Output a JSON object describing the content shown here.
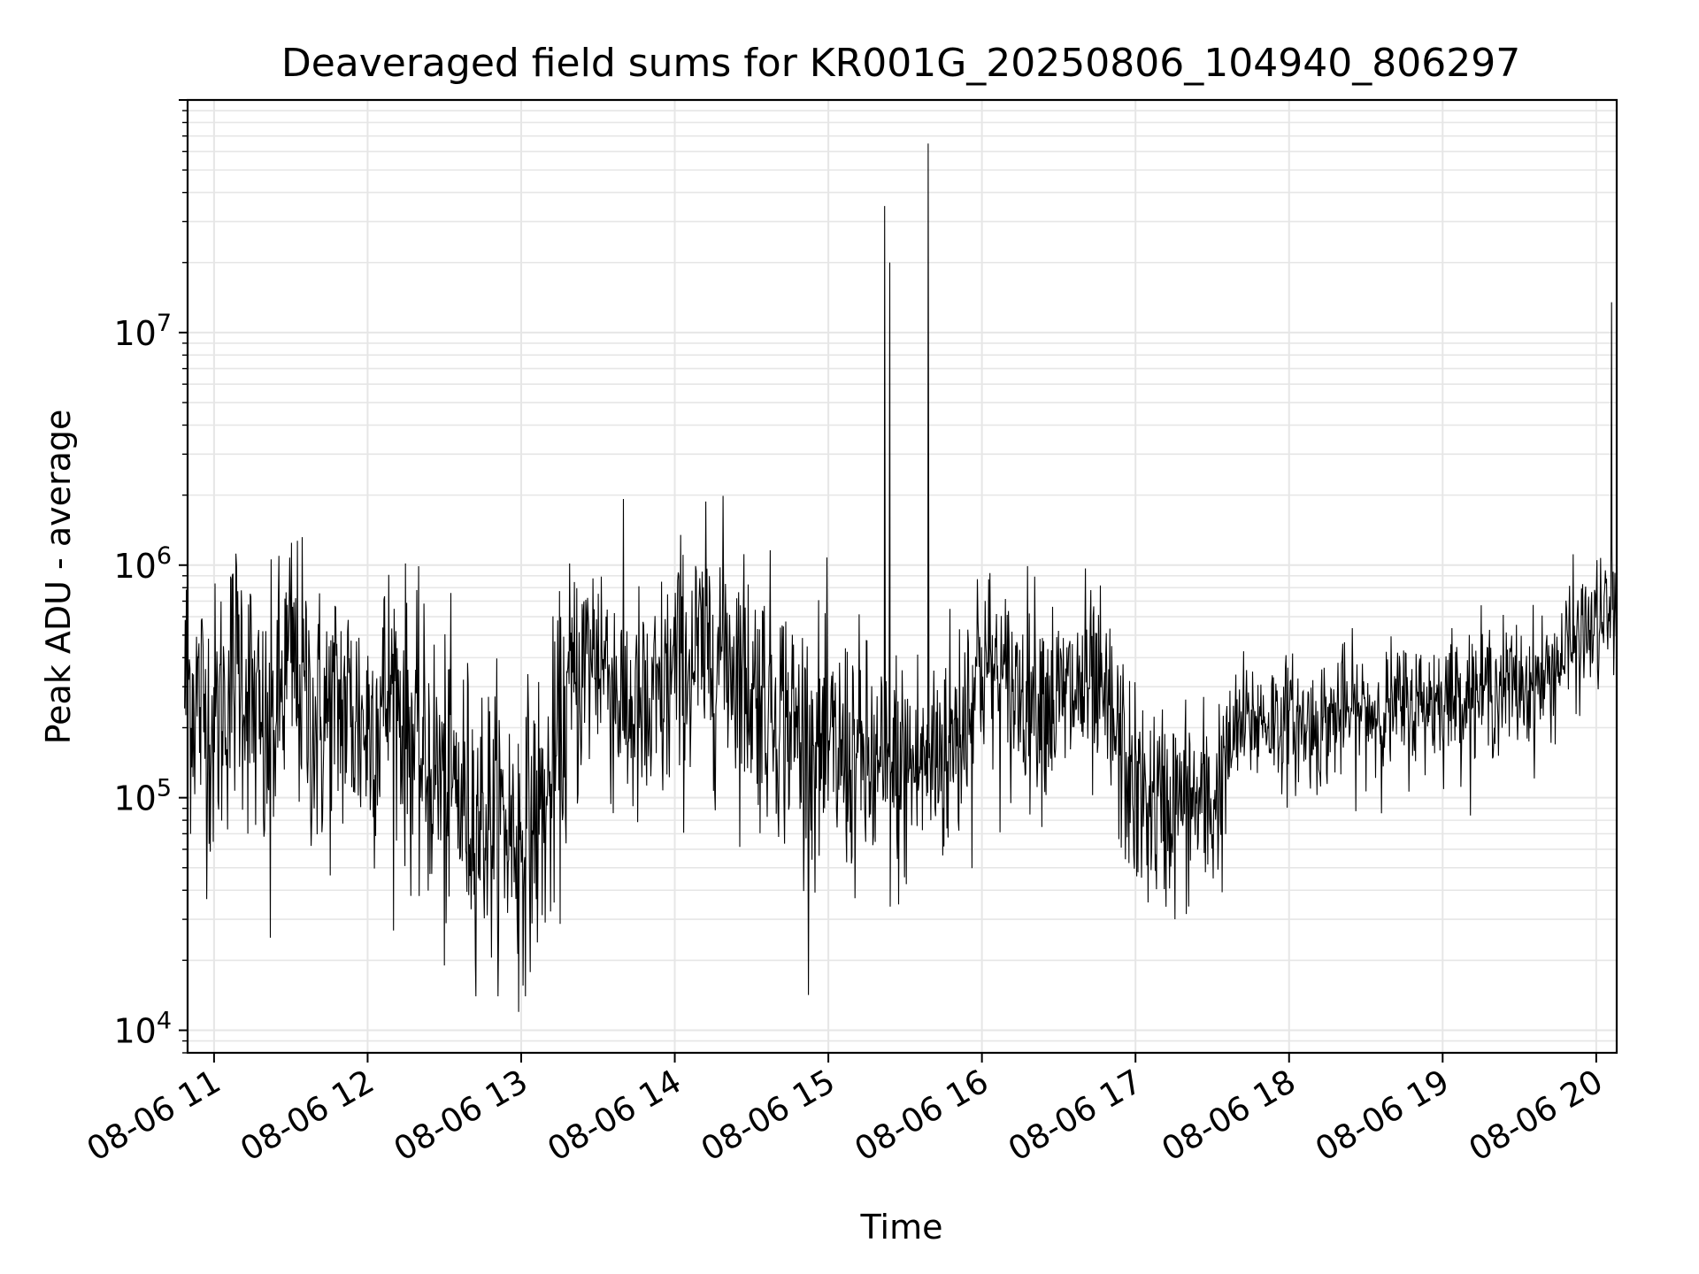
{
  "chart_data": {
    "type": "line",
    "title": "Deaveraged field sums for KR001G_20250806_104940_806297",
    "xlabel": "Time",
    "ylabel": "Peak ADU - average",
    "yscale": "log",
    "ylim": [
      8000,
      100000000
    ],
    "xlim": [
      "2025-08-06 10:49:40",
      "2025-08-06 20:08:00"
    ],
    "x_ticks": [
      "2025-08-06 11:00",
      "2025-08-06 12:00",
      "2025-08-06 13:00",
      "2025-08-06 14:00",
      "2025-08-06 15:00",
      "2025-08-06 16:00",
      "2025-08-06 17:00",
      "2025-08-06 18:00",
      "2025-08-06 19:00",
      "2025-08-06 20:00"
    ],
    "x_tick_labels": [
      "08-06 11",
      "08-06 12",
      "08-06 13",
      "08-06 14",
      "08-06 15",
      "08-06 16",
      "08-06 17",
      "08-06 18",
      "08-06 19",
      "08-06 20"
    ],
    "y_ticks": [
      {
        "value": 10000,
        "label": "10",
        "exp": "4"
      },
      {
        "value": 100000,
        "label": "10",
        "exp": "5"
      },
      {
        "value": 1000000,
        "label": "10",
        "exp": "6"
      },
      {
        "value": 10000000,
        "label": "10",
        "exp": "7"
      }
    ],
    "grid": true,
    "line_color": "#000000",
    "series": [
      {
        "x": [
          "10:50",
          "11:00",
          "11:10",
          "11:20",
          "11:30",
          "11:40",
          "11:50",
          "12:00",
          "12:10",
          "12:20",
          "12:30",
          "12:40",
          "12:50",
          "13:00",
          "13:10",
          "13:20",
          "13:30",
          "13:40",
          "13:50",
          "14:00",
          "14:10",
          "14:20",
          "14:30",
          "14:40",
          "14:50",
          "15:00",
          "15:10",
          "15:20",
          "15:30",
          "15:40",
          "15:50",
          "16:00",
          "16:10",
          "16:20",
          "16:30",
          "16:40",
          "16:50",
          "17:00",
          "17:10",
          "17:20",
          "17:30",
          "17:40",
          "17:50",
          "18:00",
          "18:10",
          "18:20",
          "18:30",
          "18:40",
          "18:50",
          "19:00",
          "19:10",
          "19:20",
          "19:30",
          "19:40",
          "19:50",
          "20:00",
          "20:05"
        ],
        "y": [
          300000,
          200000,
          400000,
          150000,
          400000,
          200000,
          250000,
          200000,
          300000,
          150000,
          120000,
          90000,
          80000,
          70000,
          90000,
          300000,
          450000,
          250000,
          200000,
          350000,
          400000,
          450000,
          300000,
          250000,
          180000,
          150000,
          150000,
          120000,
          130000,
          150000,
          180000,
          400000,
          280000,
          300000,
          250000,
          300000,
          220000,
          100000,
          90000,
          95000,
          90000,
          200000,
          220000,
          210000,
          200000,
          230000,
          230000,
          240000,
          250000,
          270000,
          280000,
          300000,
          300000,
          320000,
          450000,
          550000,
          600000
        ]
      }
    ],
    "spikes": [
      {
        "x": "15:22",
        "y": 35000000
      },
      {
        "x": "15:24",
        "y": 20000000
      },
      {
        "x": "15:39",
        "y": 65000000
      },
      {
        "x": "20:06",
        "y": 13500000
      },
      {
        "x": "12:59",
        "y": 12000
      },
      {
        "x": "11:22",
        "y": 25000
      },
      {
        "x": "12:30",
        "y": 19000
      }
    ]
  }
}
